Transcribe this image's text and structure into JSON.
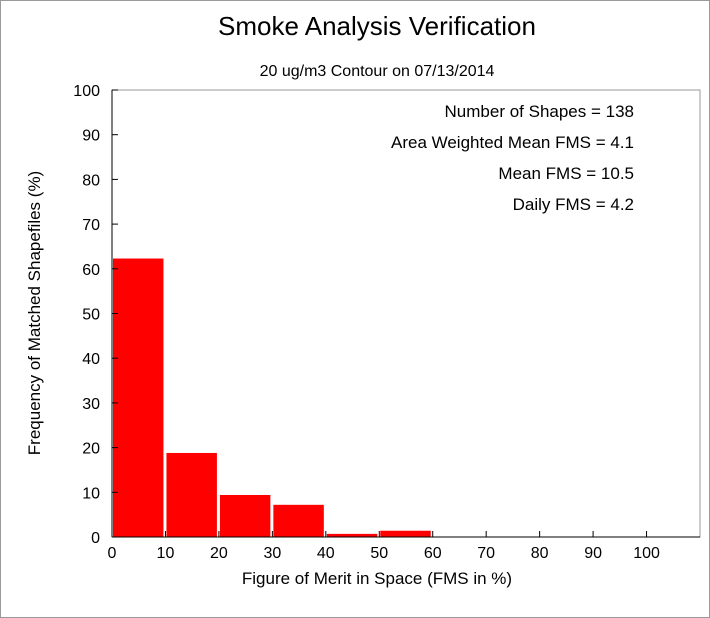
{
  "chart_data": {
    "type": "bar",
    "title": "Smoke Analysis Verification",
    "subtitle": "20 ug/m3 Contour on 07/13/2014",
    "xlabel": "Figure of Merit in Space (FMS in %)",
    "ylabel": "Frequency of Matched Shapefiles (%)",
    "xlim": [
      0,
      110
    ],
    "ylim": [
      0,
      100
    ],
    "xticks": [
      "0",
      "10",
      "20",
      "30",
      "40",
      "50",
      "60",
      "70",
      "80",
      "90",
      "100"
    ],
    "yticks": [
      "0",
      "10",
      "20",
      "30",
      "40",
      "50",
      "60",
      "70",
      "80",
      "90",
      "100"
    ],
    "bins": [
      {
        "start": 0,
        "end": 10,
        "value": 62.3
      },
      {
        "start": 10,
        "end": 20,
        "value": 18.8
      },
      {
        "start": 20,
        "end": 30,
        "value": 9.4
      },
      {
        "start": 30,
        "end": 40,
        "value": 7.2
      },
      {
        "start": 40,
        "end": 50,
        "value": 0.7
      },
      {
        "start": 50,
        "end": 60,
        "value": 1.4
      },
      {
        "start": 60,
        "end": 70,
        "value": 0
      },
      {
        "start": 70,
        "end": 80,
        "value": 0
      },
      {
        "start": 80,
        "end": 90,
        "value": 0
      },
      {
        "start": 90,
        "end": 100,
        "value": 0
      },
      {
        "start": 100,
        "end": 110,
        "value": 0
      }
    ],
    "bar_color": "#ff0000",
    "grid": false,
    "annotations": [
      "Number of Shapes = 138",
      "Area Weighted Mean FMS = 4.1",
      "Mean FMS = 10.5",
      "Daily FMS = 4.2"
    ]
  }
}
